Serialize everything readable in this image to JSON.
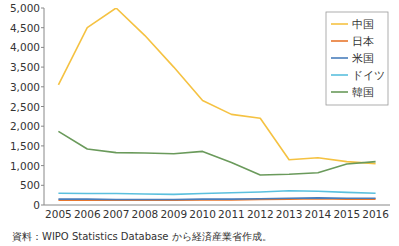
{
  "chart_data": {
    "type": "line",
    "categories": [
      "2005",
      "2006",
      "2007",
      "2008",
      "2009",
      "2010",
      "2011",
      "2012",
      "2013",
      "2014",
      "2015",
      "2016"
    ],
    "series": [
      {
        "name": "中国",
        "color": "#f5c242",
        "values": [
          3050,
          4500,
          5000,
          4300,
          3500,
          2650,
          2300,
          2200,
          1150,
          1200,
          1100,
          1050
        ]
      },
      {
        "name": "日本",
        "color": "#e8772e",
        "values": [
          120,
          120,
          120,
          120,
          120,
          130,
          130,
          140,
          150,
          160,
          150,
          150
        ]
      },
      {
        "name": "米国",
        "color": "#4a7ebb",
        "values": [
          150,
          150,
          140,
          140,
          140,
          150,
          150,
          160,
          170,
          180,
          170,
          170
        ]
      },
      {
        "name": "ドイツ",
        "color": "#5bc0de",
        "values": [
          300,
          290,
          290,
          280,
          270,
          290,
          310,
          330,
          360,
          350,
          320,
          300
        ]
      },
      {
        "name": "韓国",
        "color": "#6a9a5b",
        "values": [
          1870,
          1420,
          1330,
          1320,
          1300,
          1360,
          1080,
          760,
          780,
          820,
          1040,
          1100
        ]
      }
    ],
    "ylim": [
      0,
      5000
    ],
    "yticks": [
      0,
      500,
      {
        "value": 1000,
        "label": "1,000"
      },
      {
        "value": 1500,
        "label": "1,500"
      },
      {
        "value": 2000,
        "label": "2,000"
      },
      {
        "value": 2500,
        "label": "2,500"
      },
      {
        "value": 3000,
        "label": "3,000"
      },
      {
        "value": 3500,
        "label": "3,500"
      },
      {
        "value": 4000,
        "label": "4,000"
      },
      {
        "value": 4500,
        "label": "4,500"
      },
      {
        "value": 5000,
        "label": "5,000"
      }
    ],
    "grid": false,
    "legend": "top-right",
    "annotations": [
      "資料：WIPO Statistics Database から経済産業省作成。"
    ]
  }
}
